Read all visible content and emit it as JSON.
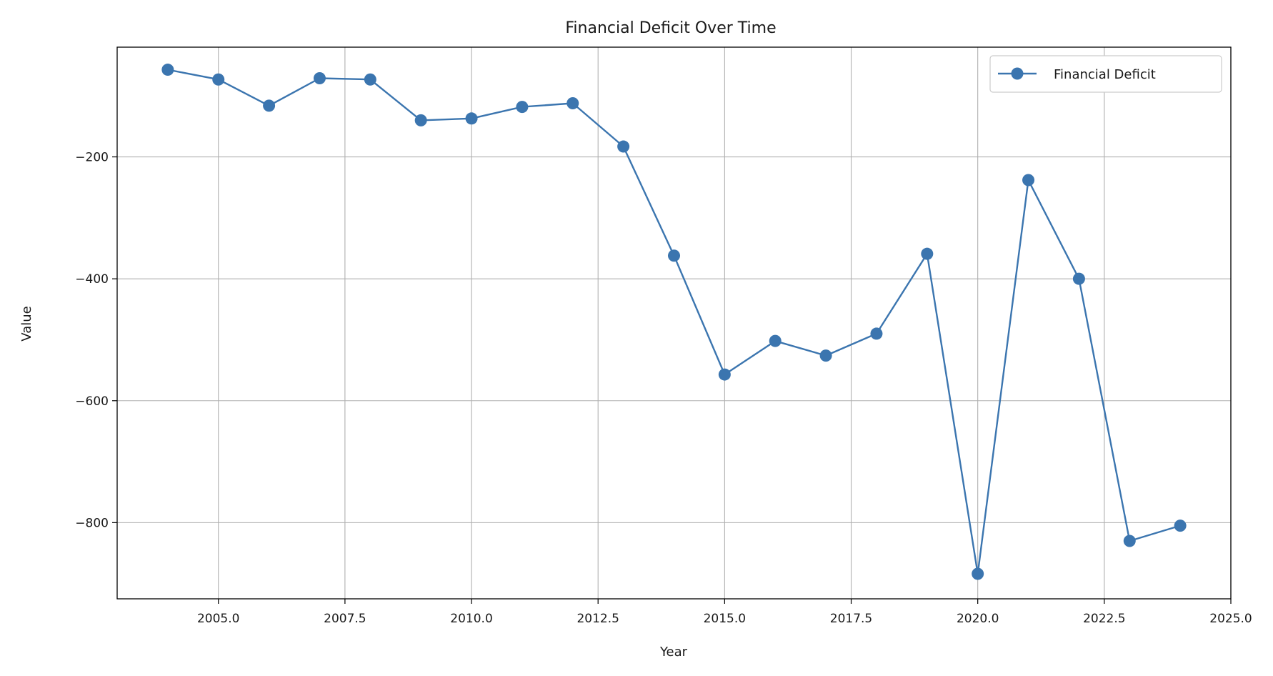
{
  "chart_data": {
    "type": "line",
    "title": "Financial Deficit Over Time",
    "xlabel": "Year",
    "ylabel": "Value",
    "xlim": [
      2003,
      2025
    ],
    "ylim": [
      -925,
      -20
    ],
    "xticks": [
      2005.0,
      2007.5,
      2010.0,
      2012.5,
      2015.0,
      2017.5,
      2020.0,
      2022.5,
      2025.0
    ],
    "xtick_labels": [
      "2005.0",
      "2007.5",
      "2010.0",
      "2012.5",
      "2015.0",
      "2017.5",
      "2020.0",
      "2022.5",
      "2025.0"
    ],
    "yticks": [
      -200,
      -400,
      -600,
      -800
    ],
    "ytick_labels": [
      "−200",
      "−400",
      "−600",
      "−800"
    ],
    "grid": true,
    "legend_position": "top-right",
    "series": [
      {
        "name": "Financial Deficit",
        "color": "#3b75af",
        "marker": "circle",
        "x": [
          2004,
          2005,
          2006,
          2007,
          2008,
          2009,
          2010,
          2011,
          2012,
          2013,
          2014,
          2015,
          2016,
          2017,
          2018,
          2019,
          2020,
          2021,
          2022,
          2023,
          2024
        ],
        "y": [
          -57,
          -73,
          -116,
          -71,
          -73,
          -140,
          -137,
          -118,
          -112,
          -183,
          -362,
          -557,
          -502,
          -526,
          -490,
          -359,
          -884,
          -238,
          -400,
          -830,
          -805
        ]
      }
    ]
  }
}
